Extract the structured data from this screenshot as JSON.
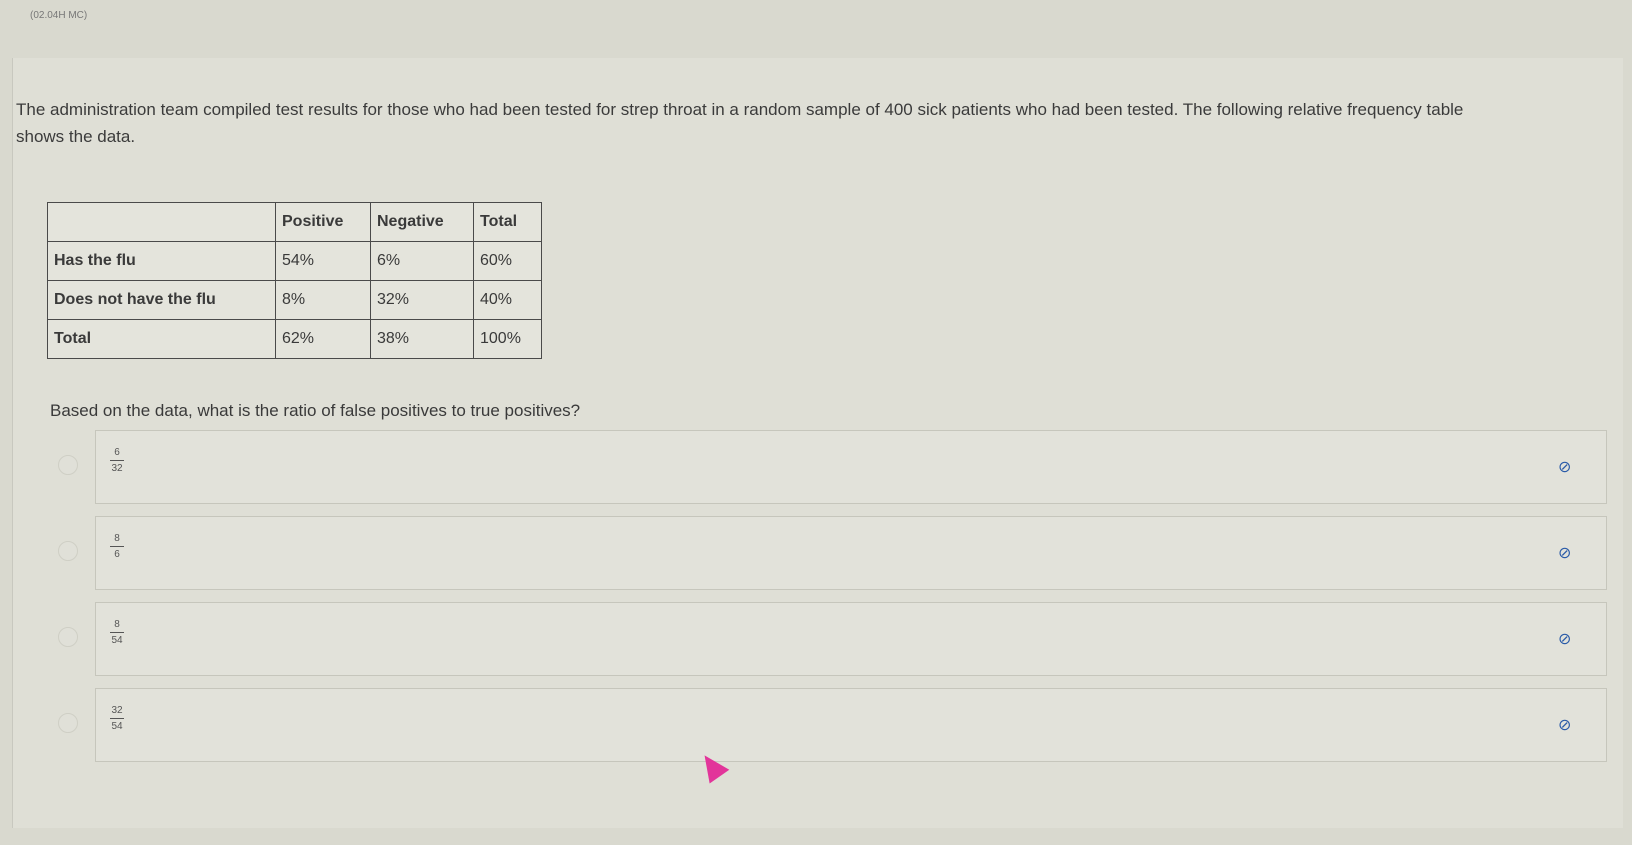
{
  "header": {
    "code": "(02.04H MC)"
  },
  "intro": "The administration team compiled test results for those who had been tested for strep throat in a random sample of 400 sick patients who had been tested. The following relative frequency table shows the data.",
  "table": {
    "headers": [
      "",
      "Positive",
      "Negative",
      "Total"
    ],
    "rows": [
      [
        "Has the flu",
        "54%",
        "6%",
        "60%"
      ],
      [
        "Does not have the flu",
        "8%",
        "32%",
        "40%"
      ],
      [
        "Total",
        "62%",
        "38%",
        "100%"
      ]
    ]
  },
  "question": "Based on the data, what is the ratio of false positives to true positives?",
  "options": [
    {
      "num": "6",
      "den": "32",
      "icon": "eye-slash-icon"
    },
    {
      "num": "8",
      "den": "6",
      "icon": "eye-slash-icon"
    },
    {
      "num": "8",
      "den": "54",
      "icon": "eye-slash-icon"
    },
    {
      "num": "32",
      "den": "54",
      "icon": "eye-slash-icon"
    }
  ],
  "colors": {
    "accent": "#2a5ba8",
    "cursor": "#e2359a"
  }
}
